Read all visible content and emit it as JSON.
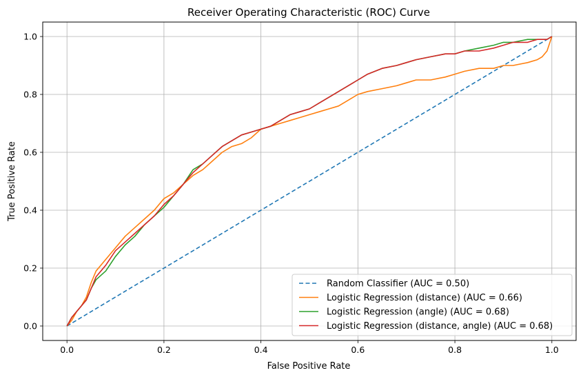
{
  "chart_data": {
    "type": "line",
    "title": "Receiver Operating Characteristic (ROC) Curve",
    "xlabel": "False Positive Rate",
    "ylabel": "True Positive Rate",
    "xlim": [
      -0.05,
      1.05
    ],
    "ylim": [
      -0.05,
      1.05
    ],
    "xticks": [
      0.0,
      0.2,
      0.4,
      0.6,
      0.8,
      1.0
    ],
    "yticks": [
      0.0,
      0.2,
      0.4,
      0.6,
      0.8,
      1.0
    ],
    "xtick_labels": [
      "0.0",
      "0.2",
      "0.4",
      "0.6",
      "0.8",
      "1.0"
    ],
    "ytick_labels": [
      "0.0",
      "0.2",
      "0.4",
      "0.6",
      "0.8",
      "1.0"
    ],
    "grid": true,
    "legend_position": "bottom-right",
    "series": [
      {
        "name": "Random Classifier (AUC = 0.50)",
        "color": "#1f77b4",
        "dashed": true,
        "x": [
          0.0,
          1.0
        ],
        "y": [
          0.0,
          1.0
        ]
      },
      {
        "name": "Logistic Regression (distance) (AUC = 0.66)",
        "color": "#ff7f0e",
        "dashed": false,
        "x": [
          0.0,
          0.01,
          0.02,
          0.03,
          0.04,
          0.05,
          0.06,
          0.08,
          0.1,
          0.12,
          0.14,
          0.16,
          0.18,
          0.2,
          0.22,
          0.24,
          0.26,
          0.28,
          0.3,
          0.32,
          0.34,
          0.36,
          0.38,
          0.4,
          0.42,
          0.44,
          0.46,
          0.48,
          0.5,
          0.52,
          0.54,
          0.56,
          0.58,
          0.6,
          0.62,
          0.65,
          0.68,
          0.7,
          0.72,
          0.75,
          0.78,
          0.8,
          0.82,
          0.85,
          0.88,
          0.9,
          0.92,
          0.95,
          0.97,
          0.98,
          0.99,
          1.0
        ],
        "y": [
          0.0,
          0.02,
          0.05,
          0.07,
          0.1,
          0.15,
          0.19,
          0.23,
          0.27,
          0.31,
          0.34,
          0.37,
          0.4,
          0.44,
          0.46,
          0.49,
          0.52,
          0.54,
          0.57,
          0.6,
          0.62,
          0.63,
          0.65,
          0.68,
          0.69,
          0.7,
          0.71,
          0.72,
          0.73,
          0.74,
          0.75,
          0.76,
          0.78,
          0.8,
          0.81,
          0.82,
          0.83,
          0.84,
          0.85,
          0.85,
          0.86,
          0.87,
          0.88,
          0.89,
          0.89,
          0.9,
          0.9,
          0.91,
          0.92,
          0.93,
          0.95,
          1.0
        ]
      },
      {
        "name": "Logistic Regression (angle) (AUC = 0.68)",
        "color": "#2ca02c",
        "dashed": false,
        "x": [
          0.0,
          0.01,
          0.02,
          0.03,
          0.04,
          0.05,
          0.06,
          0.08,
          0.1,
          0.12,
          0.14,
          0.16,
          0.18,
          0.2,
          0.22,
          0.24,
          0.26,
          0.28,
          0.3,
          0.32,
          0.34,
          0.36,
          0.38,
          0.4,
          0.42,
          0.44,
          0.46,
          0.48,
          0.5,
          0.52,
          0.54,
          0.56,
          0.58,
          0.6,
          0.62,
          0.65,
          0.68,
          0.7,
          0.72,
          0.75,
          0.78,
          0.8,
          0.82,
          0.85,
          0.88,
          0.9,
          0.92,
          0.95,
          0.97,
          0.99,
          1.0
        ],
        "y": [
          0.0,
          0.03,
          0.05,
          0.07,
          0.09,
          0.13,
          0.16,
          0.19,
          0.24,
          0.28,
          0.31,
          0.35,
          0.38,
          0.41,
          0.45,
          0.49,
          0.54,
          0.56,
          0.59,
          0.62,
          0.64,
          0.66,
          0.67,
          0.68,
          0.69,
          0.71,
          0.73,
          0.74,
          0.75,
          0.77,
          0.79,
          0.81,
          0.83,
          0.85,
          0.87,
          0.89,
          0.9,
          0.91,
          0.92,
          0.93,
          0.94,
          0.94,
          0.95,
          0.96,
          0.97,
          0.98,
          0.98,
          0.99,
          0.99,
          0.99,
          1.0
        ]
      },
      {
        "name": "Logistic Regression (distance, angle) (AUC = 0.68)",
        "color": "#d62728",
        "dashed": false,
        "x": [
          0.0,
          0.01,
          0.02,
          0.03,
          0.04,
          0.05,
          0.06,
          0.08,
          0.1,
          0.12,
          0.14,
          0.16,
          0.18,
          0.2,
          0.22,
          0.24,
          0.26,
          0.28,
          0.3,
          0.32,
          0.34,
          0.36,
          0.38,
          0.4,
          0.42,
          0.44,
          0.46,
          0.48,
          0.5,
          0.52,
          0.54,
          0.56,
          0.58,
          0.6,
          0.62,
          0.65,
          0.68,
          0.7,
          0.72,
          0.75,
          0.78,
          0.8,
          0.82,
          0.85,
          0.88,
          0.9,
          0.92,
          0.95,
          0.97,
          0.99,
          1.0
        ],
        "y": [
          0.0,
          0.03,
          0.05,
          0.07,
          0.09,
          0.13,
          0.17,
          0.21,
          0.26,
          0.29,
          0.32,
          0.35,
          0.38,
          0.42,
          0.45,
          0.49,
          0.53,
          0.56,
          0.59,
          0.62,
          0.64,
          0.66,
          0.67,
          0.68,
          0.69,
          0.71,
          0.73,
          0.74,
          0.75,
          0.77,
          0.79,
          0.81,
          0.83,
          0.85,
          0.87,
          0.89,
          0.9,
          0.91,
          0.92,
          0.93,
          0.94,
          0.94,
          0.95,
          0.95,
          0.96,
          0.97,
          0.98,
          0.98,
          0.99,
          0.99,
          1.0
        ]
      }
    ]
  }
}
